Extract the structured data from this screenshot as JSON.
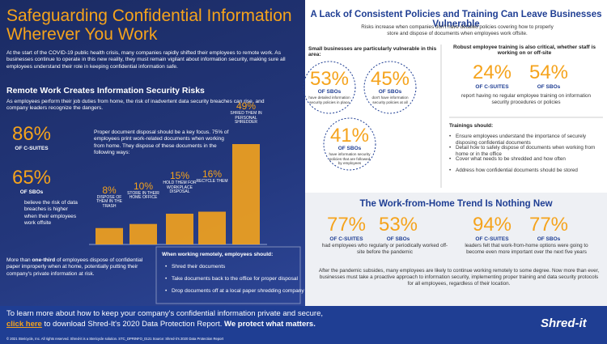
{
  "left": {
    "title": "Safeguarding Confidential Information Wherever You Work",
    "intro": "At the start of the COVID-19 public health crisis, many companies rapidly shifted their employees to remote work. As businesses continue to operate in this new reality, they must remain vigilant about information security, making sure all employees understand their role in keeping confidential information safe.",
    "section_title": "Remote Work Creates Information Security Risks",
    "section_text": "As employees perform their job duties from home, the risk of inadvertent data security breaches can rise, and company leaders recognize the dangers.",
    "stats": [
      {
        "value": "86%",
        "label": "OF C-SUITES"
      },
      {
        "value": "65%",
        "label": "OF SBOs"
      }
    ],
    "stats_caption": "believe the risk of data breaches is higher when their employees work offsite",
    "disposal_text": "Proper document disposal should be a key focus. 75% of employees print work-related documents when working from home. They dispose of these documents in the following ways:",
    "bar_chart": {
      "type": "bar",
      "categories": [
        "DISPOSE OF THEM IN THE TRASH",
        "STORE IN THEIR HOME OFFICE",
        "HOLD THEM FOR WORKPLACE DISPOSAL",
        "RECYCLE THEM",
        "SHRED THEM IN PERSONAL SHREDDER"
      ],
      "values": [
        8,
        10,
        15,
        16,
        49
      ],
      "value_labels": [
        "8%",
        "10%",
        "15%",
        "16%",
        "49%"
      ],
      "color": "#f5a31c"
    },
    "third_text": {
      "before": "More than ",
      "bold": "one-third",
      "after": " of employees dispose of confidential paper improperly when at home, potentially putting their company's private information at risk."
    },
    "remote_box": {
      "title": "When working remotely, employees should:",
      "items": [
        "Shred their documents",
        "Take documents back to the office for proper disposal",
        "Drop documents off at a local paper shredding company"
      ]
    }
  },
  "right": {
    "title": "A Lack of Consistent Policies and Training Can Leave Businesses Vulnerable",
    "subtitle": "Risks increase when companies don't have detailed policies covering how to properly store and dispose of documents when employees work offsite.",
    "small_heading": "Small businesses are particularly vulnerable in this area:",
    "sbo_circles": [
      {
        "value": "53%",
        "label": "OF SBOs",
        "caption": "have detailed information security policies in place"
      },
      {
        "value": "45%",
        "label": "OF SBOs",
        "caption": "don't have information security policies at all"
      },
      {
        "value": "41%",
        "label": "OF SBOs",
        "caption": "have information security policies that are followed by employees"
      }
    ],
    "training_heading": "Robust employee training is also critical, whether staff is working on or off-site",
    "training_stats": [
      {
        "value": "24%",
        "label": "OF C-SUITES"
      },
      {
        "value": "54%",
        "label": "OF SBOs"
      }
    ],
    "training_caption": "report having no regular employee training on information security procedures or policies",
    "trainings_title": "Trainings should:",
    "trainings_items": [
      "Ensure employees understand the importance of securely disposing confidential documents",
      "Detail how to safely dispose of documents when working from home or in the office",
      "Cover what needs to be shredded and how often",
      "Address how confidential documents should be stored"
    ],
    "wfh": {
      "title": "The Work-from-Home Trend Is Nothing New",
      "groups": [
        {
          "stats": [
            {
              "value": "77%",
              "label": "OF C-SUITES"
            },
            {
              "value": "53%",
              "label": "OF SBOs"
            }
          ],
          "caption": "had employees who regularly or periodically worked off-site before the pandemic"
        },
        {
          "stats": [
            {
              "value": "94%",
              "label": "OF C-SUITES"
            },
            {
              "value": "77%",
              "label": "OF SBOs"
            }
          ],
          "caption": "leaders felt that work-from-home options were going to become even more important over the next five years"
        }
      ],
      "text": "After the pandemic subsides, many employees are likely to continue working remotely to some degree. Now more than ever, businesses must take a proactive approach to information security, implementing proper training and data security protocols for all employees, regardless of their location."
    }
  },
  "footer": {
    "line1": "To learn more about how to keep your company's confidential information private and secure,",
    "link": "click here",
    "line2": " to download Shred-It's 2020 Data Protection Report. ",
    "bold": "We protect what matters.",
    "fine_print": "© 2021 Stericycle, Inc. All rights reserved. Shred-it is a Stericycle solution.   STC_DPRINFO_0121   Source: Shred-it's 2020 Data Protection Report",
    "logo": "Shred-it"
  }
}
